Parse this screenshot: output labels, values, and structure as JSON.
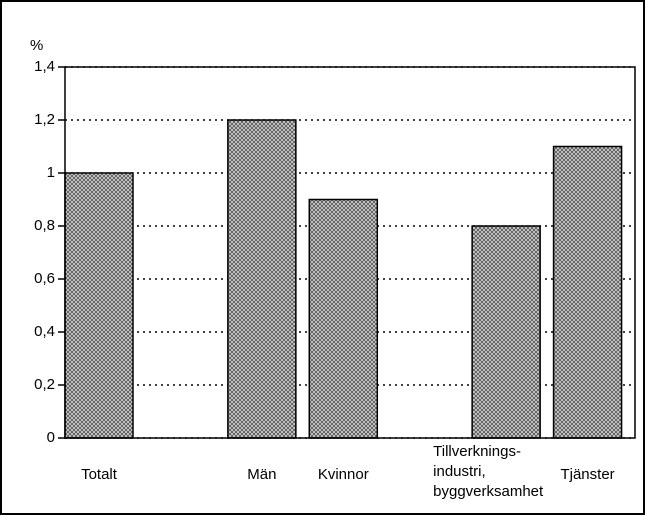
{
  "chart_data": {
    "type": "bar",
    "y_label": "%",
    "categories": [
      "Totalt",
      null,
      "Män",
      "Kvinnor",
      null,
      "Tillverknings-\nindustri,\nbyggverksamhet",
      "Tjänster"
    ],
    "values": [
      1,
      null,
      1.2,
      0.9,
      null,
      0.8,
      1.1
    ],
    "color": "#9a9a9a",
    "ylim": [
      0,
      1.4
    ],
    "yticks": [
      0,
      {
        "value": 0.2,
        "label": "0,2"
      },
      {
        "value": 0.4,
        "label": "0,4"
      },
      {
        "value": 0.6,
        "label": "0,6"
      },
      {
        "value": 0.8,
        "label": "0,8"
      },
      1,
      {
        "value": 1.2,
        "label": "1,2"
      },
      {
        "value": 1.4,
        "label": "1,4"
      }
    ],
    "grid": true
  }
}
